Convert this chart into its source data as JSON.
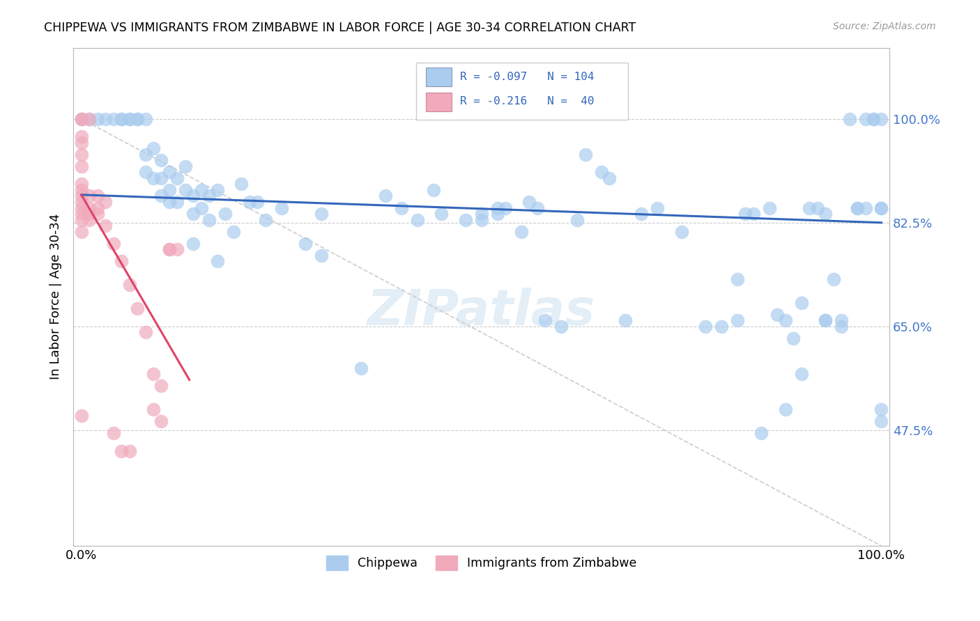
{
  "title": "CHIPPEWA VS IMMIGRANTS FROM ZIMBABWE IN LABOR FORCE | AGE 30-34 CORRELATION CHART",
  "source": "Source: ZipAtlas.com",
  "ylabel": "In Labor Force | Age 30-34",
  "y_tick_labels": [
    "47.5%",
    "65.0%",
    "82.5%",
    "100.0%"
  ],
  "y_ticks": [
    0.475,
    0.65,
    0.825,
    1.0
  ],
  "xlim": [
    -0.01,
    1.01
  ],
  "ylim": [
    0.28,
    1.12
  ],
  "legend_bottom": [
    "Chippewa",
    "Immigrants from Zimbabwe"
  ],
  "blue_color": "#aaccee",
  "pink_color": "#f0aabc",
  "blue_line_color": "#3366bb",
  "pink_line_color": "#dd4466",
  "watermark": "ZIPatlas",
  "blue_scatter": [
    [
      0.0,
      1.0
    ],
    [
      0.01,
      1.0
    ],
    [
      0.02,
      1.0
    ],
    [
      0.03,
      1.0
    ],
    [
      0.04,
      1.0
    ],
    [
      0.05,
      1.0
    ],
    [
      0.05,
      1.0
    ],
    [
      0.06,
      1.0
    ],
    [
      0.06,
      1.0
    ],
    [
      0.07,
      1.0
    ],
    [
      0.07,
      1.0
    ],
    [
      0.08,
      1.0
    ],
    [
      0.08,
      0.94
    ],
    [
      0.08,
      0.91
    ],
    [
      0.09,
      0.95
    ],
    [
      0.09,
      0.9
    ],
    [
      0.1,
      0.93
    ],
    [
      0.1,
      0.9
    ],
    [
      0.1,
      0.87
    ],
    [
      0.11,
      0.91
    ],
    [
      0.11,
      0.88
    ],
    [
      0.11,
      0.86
    ],
    [
      0.12,
      0.9
    ],
    [
      0.12,
      0.86
    ],
    [
      0.13,
      0.92
    ],
    [
      0.13,
      0.88
    ],
    [
      0.14,
      0.87
    ],
    [
      0.14,
      0.84
    ],
    [
      0.14,
      0.79
    ],
    [
      0.15,
      0.88
    ],
    [
      0.15,
      0.85
    ],
    [
      0.16,
      0.87
    ],
    [
      0.16,
      0.83
    ],
    [
      0.17,
      0.88
    ],
    [
      0.17,
      0.76
    ],
    [
      0.18,
      0.84
    ],
    [
      0.19,
      0.81
    ],
    [
      0.2,
      0.89
    ],
    [
      0.21,
      0.86
    ],
    [
      0.22,
      0.86
    ],
    [
      0.23,
      0.83
    ],
    [
      0.25,
      0.85
    ],
    [
      0.28,
      0.79
    ],
    [
      0.3,
      0.84
    ],
    [
      0.3,
      0.77
    ],
    [
      0.35,
      0.58
    ],
    [
      0.38,
      0.87
    ],
    [
      0.4,
      0.85
    ],
    [
      0.42,
      0.83
    ],
    [
      0.44,
      0.88
    ],
    [
      0.45,
      0.84
    ],
    [
      0.48,
      0.83
    ],
    [
      0.5,
      0.84
    ],
    [
      0.5,
      0.83
    ],
    [
      0.52,
      0.85
    ],
    [
      0.52,
      0.84
    ],
    [
      0.53,
      0.85
    ],
    [
      0.55,
      0.81
    ],
    [
      0.56,
      0.86
    ],
    [
      0.57,
      0.85
    ],
    [
      0.58,
      0.66
    ],
    [
      0.6,
      0.65
    ],
    [
      0.62,
      0.83
    ],
    [
      0.63,
      0.94
    ],
    [
      0.65,
      0.91
    ],
    [
      0.66,
      0.9
    ],
    [
      0.68,
      0.66
    ],
    [
      0.7,
      0.84
    ],
    [
      0.72,
      0.85
    ],
    [
      0.75,
      0.81
    ],
    [
      0.78,
      0.65
    ],
    [
      0.8,
      0.65
    ],
    [
      0.82,
      0.66
    ],
    [
      0.82,
      0.73
    ],
    [
      0.83,
      0.84
    ],
    [
      0.84,
      0.84
    ],
    [
      0.85,
      0.47
    ],
    [
      0.86,
      0.85
    ],
    [
      0.87,
      0.67
    ],
    [
      0.88,
      0.66
    ],
    [
      0.88,
      0.51
    ],
    [
      0.89,
      0.63
    ],
    [
      0.9,
      0.69
    ],
    [
      0.9,
      0.57
    ],
    [
      0.91,
      0.85
    ],
    [
      0.92,
      0.85
    ],
    [
      0.93,
      0.84
    ],
    [
      0.93,
      0.66
    ],
    [
      0.93,
      0.66
    ],
    [
      0.94,
      0.73
    ],
    [
      0.95,
      0.65
    ],
    [
      0.95,
      0.66
    ],
    [
      0.96,
      1.0
    ],
    [
      0.97,
      0.85
    ],
    [
      0.97,
      0.85
    ],
    [
      0.98,
      1.0
    ],
    [
      0.98,
      0.85
    ],
    [
      0.99,
      1.0
    ],
    [
      0.99,
      1.0
    ],
    [
      1.0,
      0.85
    ],
    [
      1.0,
      1.0
    ],
    [
      1.0,
      0.85
    ],
    [
      1.0,
      0.51
    ],
    [
      1.0,
      0.49
    ]
  ],
  "pink_scatter": [
    [
      0.0,
      1.0
    ],
    [
      0.0,
      1.0
    ],
    [
      0.0,
      0.97
    ],
    [
      0.0,
      0.96
    ],
    [
      0.0,
      0.94
    ],
    [
      0.0,
      0.92
    ],
    [
      0.0,
      0.89
    ],
    [
      0.0,
      0.88
    ],
    [
      0.0,
      0.87
    ],
    [
      0.0,
      0.86
    ],
    [
      0.0,
      0.85
    ],
    [
      0.0,
      0.84
    ],
    [
      0.0,
      0.83
    ],
    [
      0.0,
      0.81
    ],
    [
      0.01,
      0.87
    ],
    [
      0.01,
      0.85
    ],
    [
      0.01,
      0.84
    ],
    [
      0.01,
      0.83
    ],
    [
      0.02,
      0.87
    ],
    [
      0.02,
      0.85
    ],
    [
      0.02,
      0.84
    ],
    [
      0.03,
      0.86
    ],
    [
      0.03,
      0.82
    ],
    [
      0.04,
      0.79
    ],
    [
      0.04,
      0.47
    ],
    [
      0.05,
      0.76
    ],
    [
      0.05,
      0.44
    ],
    [
      0.06,
      0.72
    ],
    [
      0.06,
      0.44
    ],
    [
      0.07,
      0.68
    ],
    [
      0.08,
      0.64
    ],
    [
      0.09,
      0.57
    ],
    [
      0.09,
      0.51
    ],
    [
      0.1,
      0.55
    ],
    [
      0.1,
      0.49
    ],
    [
      0.11,
      0.78
    ],
    [
      0.11,
      0.78
    ],
    [
      0.12,
      0.78
    ],
    [
      0.0,
      0.5
    ],
    [
      0.01,
      1.0
    ]
  ],
  "blue_trend_x": [
    0.0,
    1.0
  ],
  "blue_trend_y": [
    0.872,
    0.825
  ],
  "pink_trend_x": [
    0.0,
    0.135
  ],
  "pink_trend_y": [
    0.872,
    0.56
  ],
  "diag_line_x": [
    0.0,
    1.0
  ],
  "diag_line_y": [
    1.0,
    0.28
  ]
}
